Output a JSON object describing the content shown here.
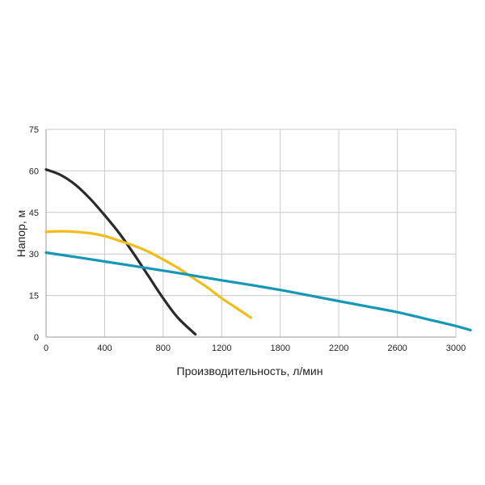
{
  "chart_data": {
    "type": "line",
    "xlabel": "Производительность, л/мин",
    "ylabel": "Напор, м",
    "xlim": [
      0,
      2800
    ],
    "ylim": [
      0,
      75
    ],
    "xticks": [
      0,
      400,
      800,
      1200,
      1800,
      2200,
      2600,
      3000
    ],
    "yticks": [
      0,
      15,
      30,
      45,
      60,
      75
    ],
    "grid": true,
    "series": [
      {
        "color": "#2b2b2b",
        "points": [
          [
            0,
            60.5
          ],
          [
            100,
            58.5
          ],
          [
            200,
            55
          ],
          [
            300,
            50
          ],
          [
            400,
            44
          ],
          [
            500,
            37.5
          ],
          [
            600,
            30
          ],
          [
            700,
            22
          ],
          [
            800,
            14
          ],
          [
            900,
            7
          ],
          [
            1020,
            1
          ]
        ]
      },
      {
        "color": "#f0be1a",
        "points": [
          [
            0,
            38
          ],
          [
            100,
            38.2
          ],
          [
            200,
            38
          ],
          [
            300,
            37.5
          ],
          [
            400,
            36.5
          ],
          [
            500,
            34.8
          ],
          [
            600,
            33
          ],
          [
            700,
            30.8
          ],
          [
            800,
            28
          ],
          [
            900,
            25
          ],
          [
            1000,
            21.5
          ],
          [
            1100,
            18
          ],
          [
            1200,
            14
          ],
          [
            1300,
            10.5
          ],
          [
            1400,
            7
          ]
        ]
      },
      {
        "color": "#1697b5",
        "points": [
          [
            0,
            30.5
          ],
          [
            400,
            27.3
          ],
          [
            800,
            24
          ],
          [
            1200,
            20.5
          ],
          [
            1400,
            18.8
          ],
          [
            1600,
            17
          ],
          [
            1800,
            15
          ],
          [
            2000,
            13
          ],
          [
            2200,
            11
          ],
          [
            2400,
            9
          ],
          [
            2600,
            6.5
          ],
          [
            2800,
            4
          ],
          [
            2900,
            2.5
          ]
        ]
      }
    ]
  }
}
